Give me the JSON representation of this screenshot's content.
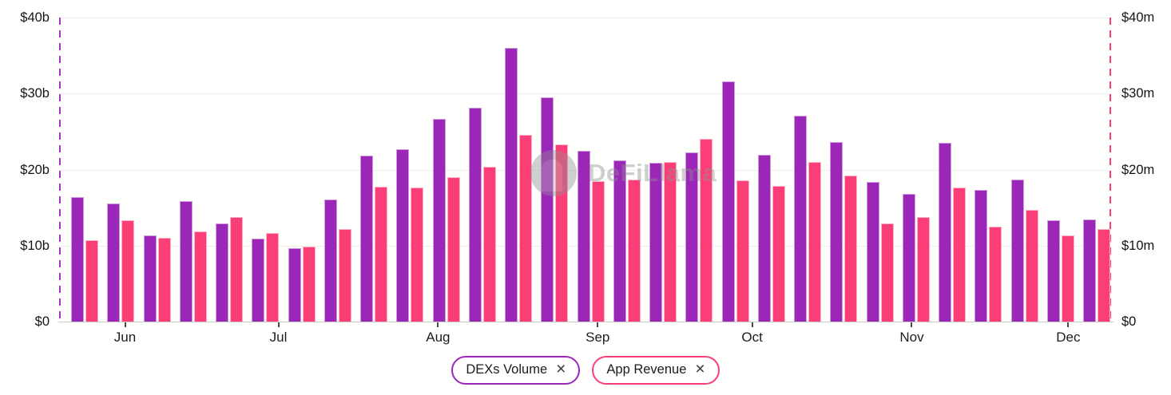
{
  "chart_data": {
    "type": "bar",
    "title": "",
    "description": "Dual-axis weekly bar chart: DEXs Volume (left axis, $ billions) vs App Revenue (right axis, $ millions), Jun–Dec",
    "grid": true,
    "legend_position": "bottom",
    "x_axis": {
      "months": [
        {
          "label": "Jun",
          "pos": 0.062
        },
        {
          "label": "Jul",
          "pos": 0.208
        },
        {
          "label": "Aug",
          "pos": 0.36
        },
        {
          "label": "Sep",
          "pos": 0.512
        },
        {
          "label": "Oct",
          "pos": 0.659
        },
        {
          "label": "Nov",
          "pos": 0.811
        },
        {
          "label": "Dec",
          "pos": 0.96
        }
      ]
    },
    "y_axis_left": {
      "ticks": [
        "$0",
        "$10b",
        "$20b",
        "$30b",
        "$40b"
      ],
      "min": 0,
      "max": 40,
      "unit": "$ billions"
    },
    "y_axis_right": {
      "ticks": [
        "$0",
        "$10m",
        "$20m",
        "$30m",
        "$40m"
      ],
      "min": 0,
      "max": 40,
      "unit": "$ millions"
    },
    "series": [
      {
        "name": "DEXs Volume",
        "axis": "left",
        "unit": "$b",
        "color": "#9b27b8",
        "values": [
          16.4,
          15.5,
          11.3,
          15.9,
          12.9,
          10.9,
          9.7,
          16.1,
          21.8,
          22.7,
          26.7,
          28.1,
          36.0,
          29.5,
          22.5,
          21.2,
          20.9,
          22.3,
          31.6,
          21.9,
          27.1,
          23.6,
          18.4,
          16.8,
          23.5,
          17.3,
          18.7,
          13.3,
          13.4
        ]
      },
      {
        "name": "App Revenue",
        "axis": "right",
        "unit": "$m",
        "color": "#fc3e77",
        "values": [
          10.7,
          13.3,
          11.0,
          11.9,
          13.8,
          11.7,
          9.9,
          12.2,
          17.7,
          17.6,
          19.0,
          20.4,
          24.6,
          23.3,
          18.5,
          18.7,
          21.0,
          24.0,
          18.6,
          17.8,
          21.0,
          19.2,
          12.9,
          13.8,
          17.6,
          12.5,
          14.7,
          11.3,
          12.2
        ]
      }
    ]
  },
  "legend": {
    "items": [
      {
        "label": "DEXs Volume",
        "close_glyph": "×",
        "color": "#9b27b8"
      },
      {
        "label": "App Revenue",
        "close_glyph": "×",
        "color": "#fc3e77"
      }
    ]
  },
  "watermark": {
    "text": "DeFiLlama"
  },
  "colors": {
    "volume_purple": "#9b27b8",
    "revenue_pink": "#fc3e77",
    "gridline": "#ededed",
    "axis_line": "#c9c9c9",
    "text": "#141414",
    "watermark_gray": "#8f8f8f",
    "background": "#fffffe"
  }
}
